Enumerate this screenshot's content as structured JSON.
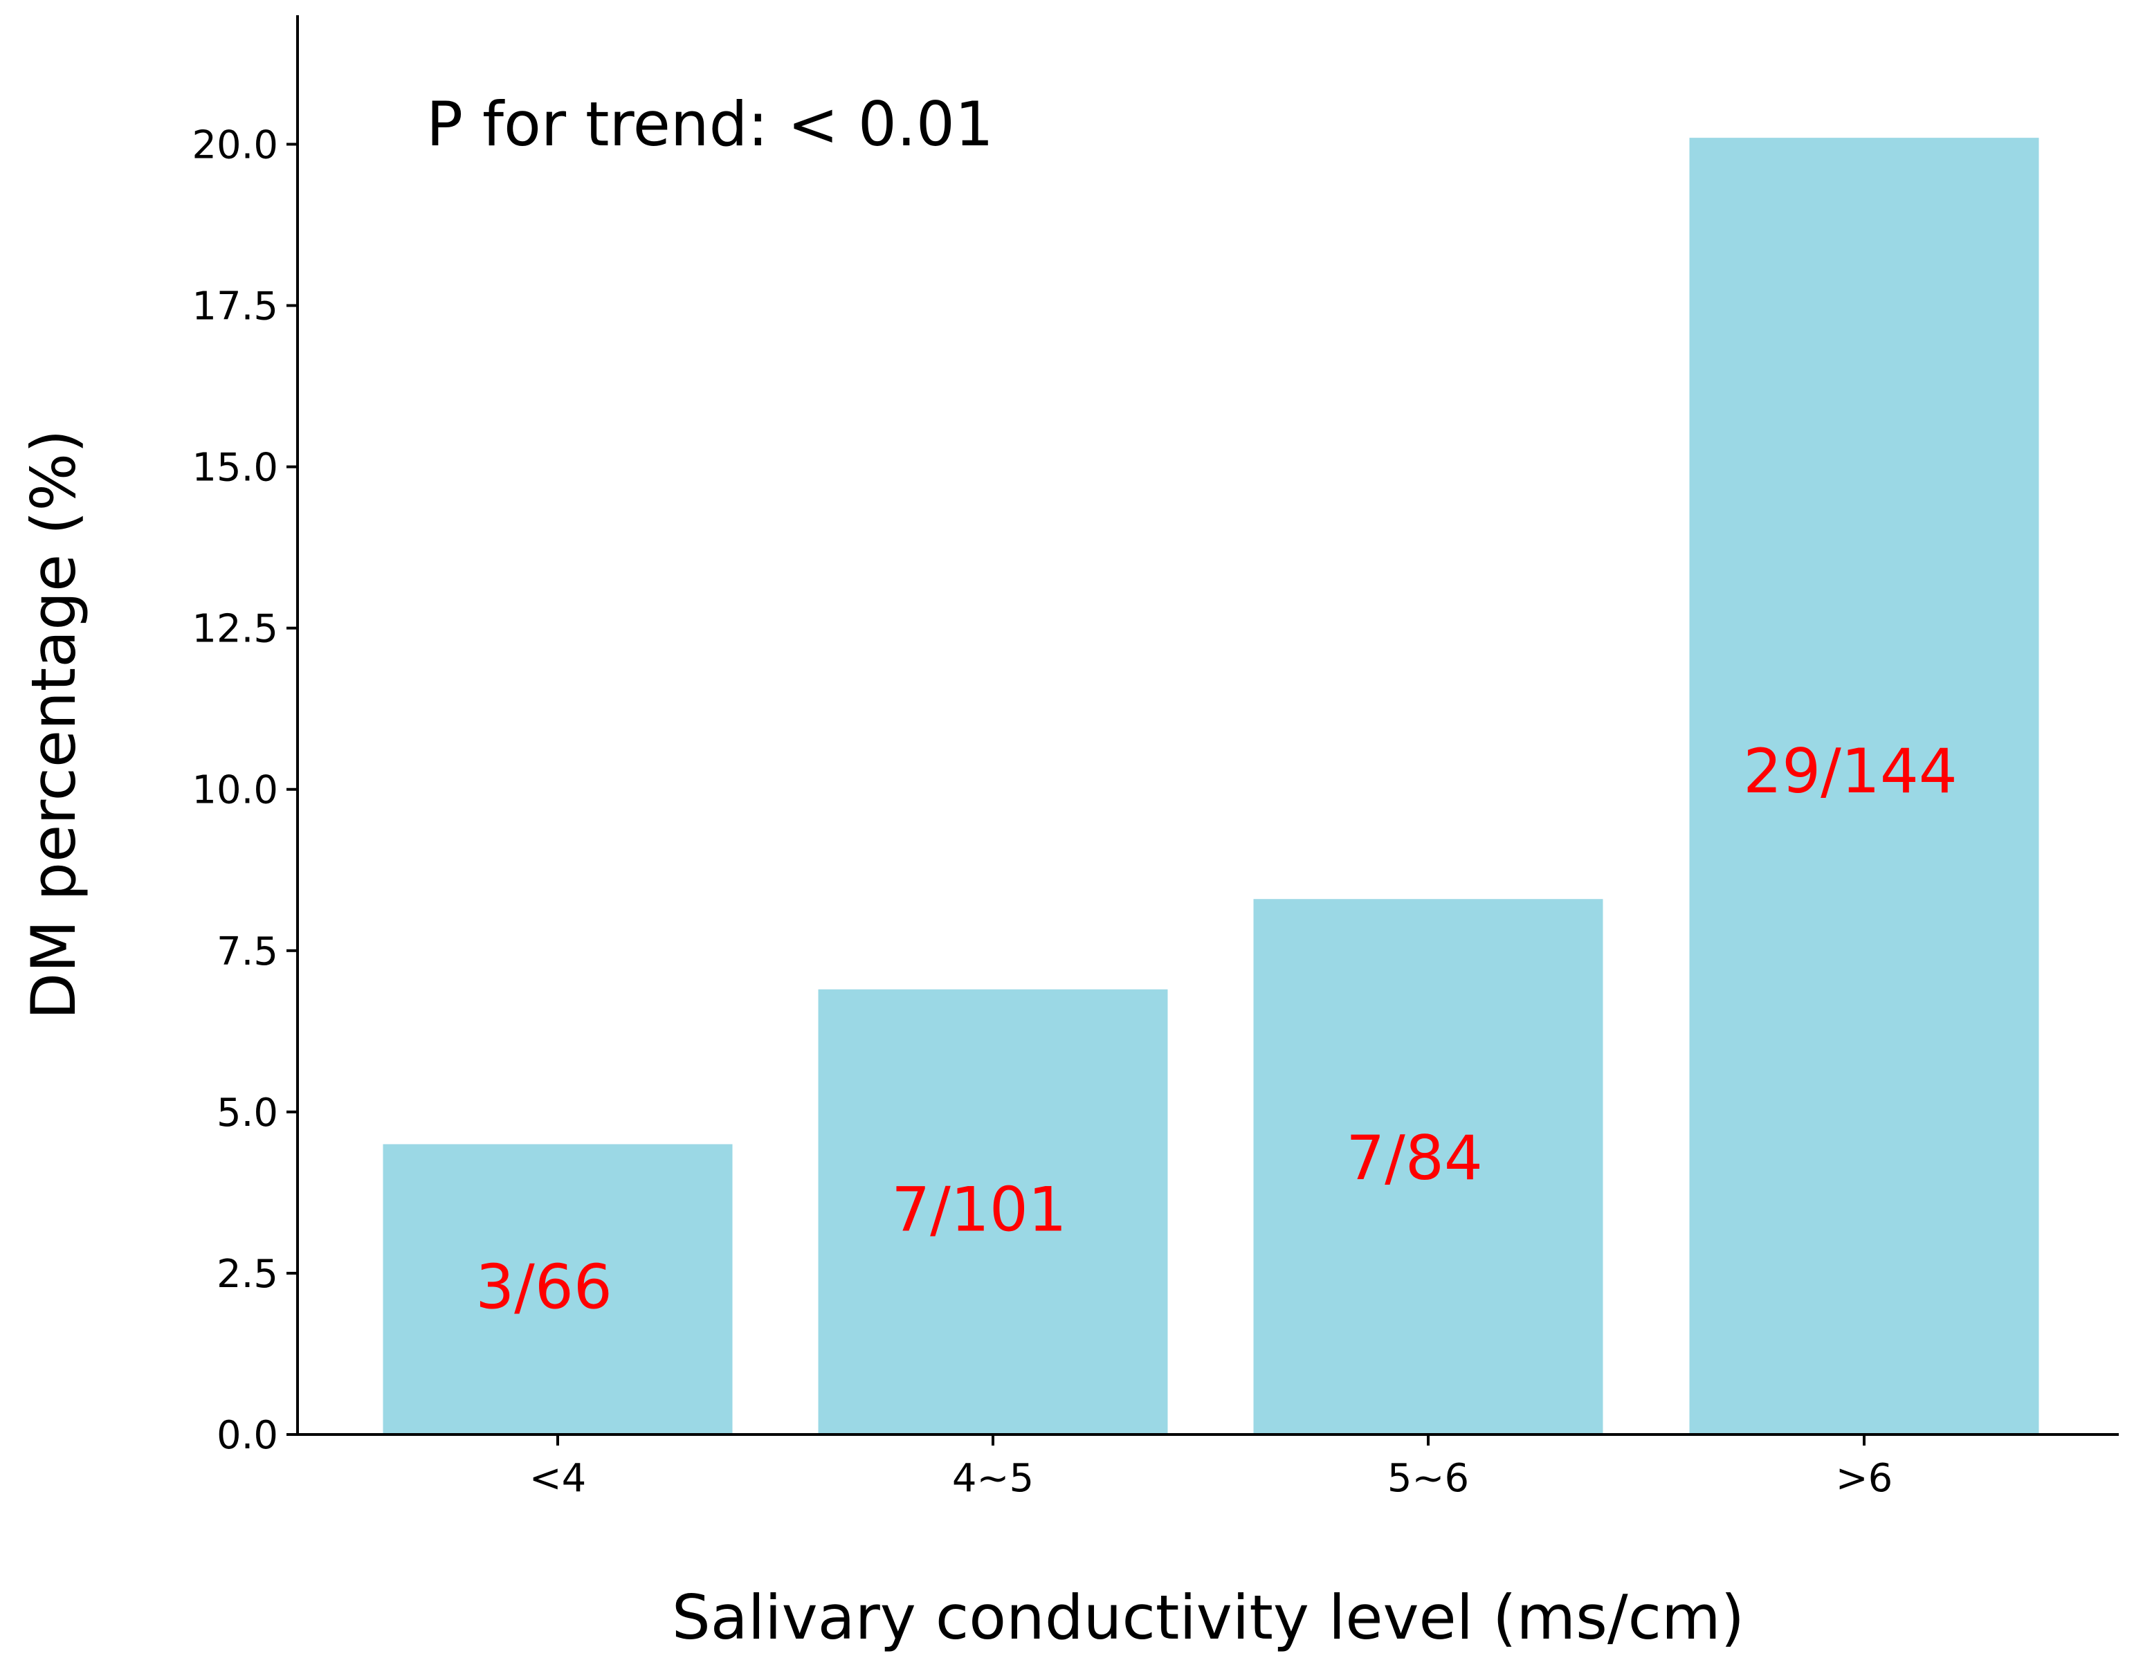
{
  "chart_data": {
    "type": "bar",
    "categories": [
      "<4",
      "4~5",
      "5~6",
      ">6"
    ],
    "values": [
      4.5,
      6.9,
      8.3,
      20.1
    ],
    "bar_labels": [
      "3/66",
      "7/101",
      "7/84",
      "29/144"
    ],
    "bar_label_values": [
      2.3,
      3.5,
      4.3,
      10.3
    ],
    "xlabel": "Salivary conductivity level (ms/cm)",
    "ylabel": "DM percentage (%)",
    "ylim": [
      0,
      22
    ],
    "yticks": [
      0,
      2.5,
      5,
      7.5,
      10,
      12.5,
      15,
      17.5,
      20
    ],
    "ytick_labels": [
      "0.0",
      "2.5",
      "5.0",
      "7.5",
      "10.0",
      "12.5",
      "15.0",
      "17.5",
      "20.0"
    ],
    "annotation": "P for trend: < 0.01",
    "grid": false,
    "bar_color": "#9bd8e5",
    "bar_label_color": "#ff0000"
  }
}
